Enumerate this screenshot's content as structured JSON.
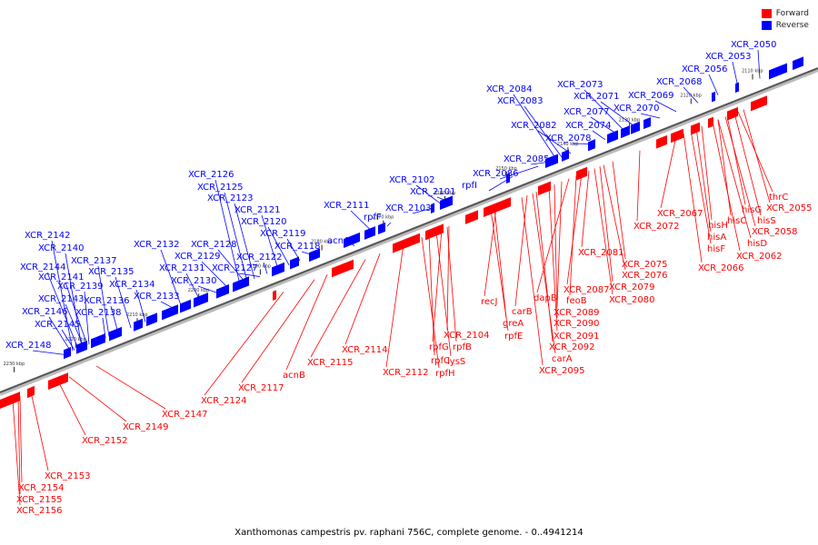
{
  "legend": {
    "forward_label": "Forward",
    "reverse_label": "Reverse",
    "forward_color": "#ff0000",
    "reverse_color": "#0000ff"
  },
  "caption": "Xanthomonas campestris pv. raphani 756C, complete genome. - 0..4941214",
  "ticks": [
    "2110 kbp",
    "2120 kbp",
    "2130 kbp",
    "2140 kbp",
    "2150 kbp",
    "2160 kbp",
    "2170 kbp",
    "2180 kbp",
    "2190 kbp",
    "2200 kbp",
    "2210 kbp",
    "2220 kbp",
    "2230 kbp"
  ],
  "reverse_genes": [
    "XCR_2050",
    "XCR_2053",
    "XCR_2056",
    "XCR_2068",
    "XCR_2069",
    "XCR_2070",
    "XCR_2071",
    "XCR_2073",
    "XCR_2074",
    "XCR_2077",
    "XCR_2078",
    "XCR_2082",
    "XCR_2083",
    "XCR_2084",
    "XCR_2085",
    "XCR_2086",
    "rpfI",
    "XCR_2101",
    "XCR_2102",
    "XCR_2103",
    "rpfF",
    "XCR_2111",
    "acnA",
    "XCR_2118",
    "XCR_2119",
    "XCR_2120",
    "XCR_2121",
    "XCR_2122",
    "XCR_2123",
    "XCR_2125",
    "XCR_2126",
    "XCR_2127",
    "XCR_2128",
    "XCR_2129",
    "XCR_2130",
    "XCR_2131",
    "XCR_2132",
    "XCR_2133",
    "XCR_2134",
    "XCR_2135",
    "XCR_2136",
    "XCR_2137",
    "XCR_2138",
    "XCR_2139",
    "XCR_2140",
    "XCR_2141",
    "XCR_2142",
    "XCR_2143",
    "XCR_2144",
    "XCR_2145",
    "XCR_2146",
    "XCR_2148"
  ],
  "forward_genes": [
    "thrC",
    "XCR_2055",
    "hisG",
    "hisS",
    "hisC",
    "XCR_2058",
    "hisH",
    "hisD",
    "hisA",
    "XCR_2062",
    "hisF",
    "XCR_2067",
    "XCR_2066",
    "XCR_2072",
    "XCR_2075",
    "XCR_2081",
    "XCR_2076",
    "XCR_2079",
    "XCR_2080",
    "XCR_2087",
    "feoB",
    "dapB",
    "XCR_2089",
    "XCR_2090",
    "XCR_2091",
    "carB",
    "XCR_2092",
    "carA",
    "XCR_2095",
    "recJ",
    "greA",
    "rpfE",
    "XCR_2104",
    "rpfB",
    "rpfG",
    "lysS",
    "rpfC",
    "rpfH",
    "XCR_2112",
    "XCR_2114",
    "XCR_2115",
    "acnB",
    "XCR_2117",
    "XCR_2124",
    "XCR_2147",
    "XCR_2149",
    "XCR_2152",
    "XCR_2153",
    "XCR_2154",
    "XCR_2155",
    "XCR_2156"
  ]
}
